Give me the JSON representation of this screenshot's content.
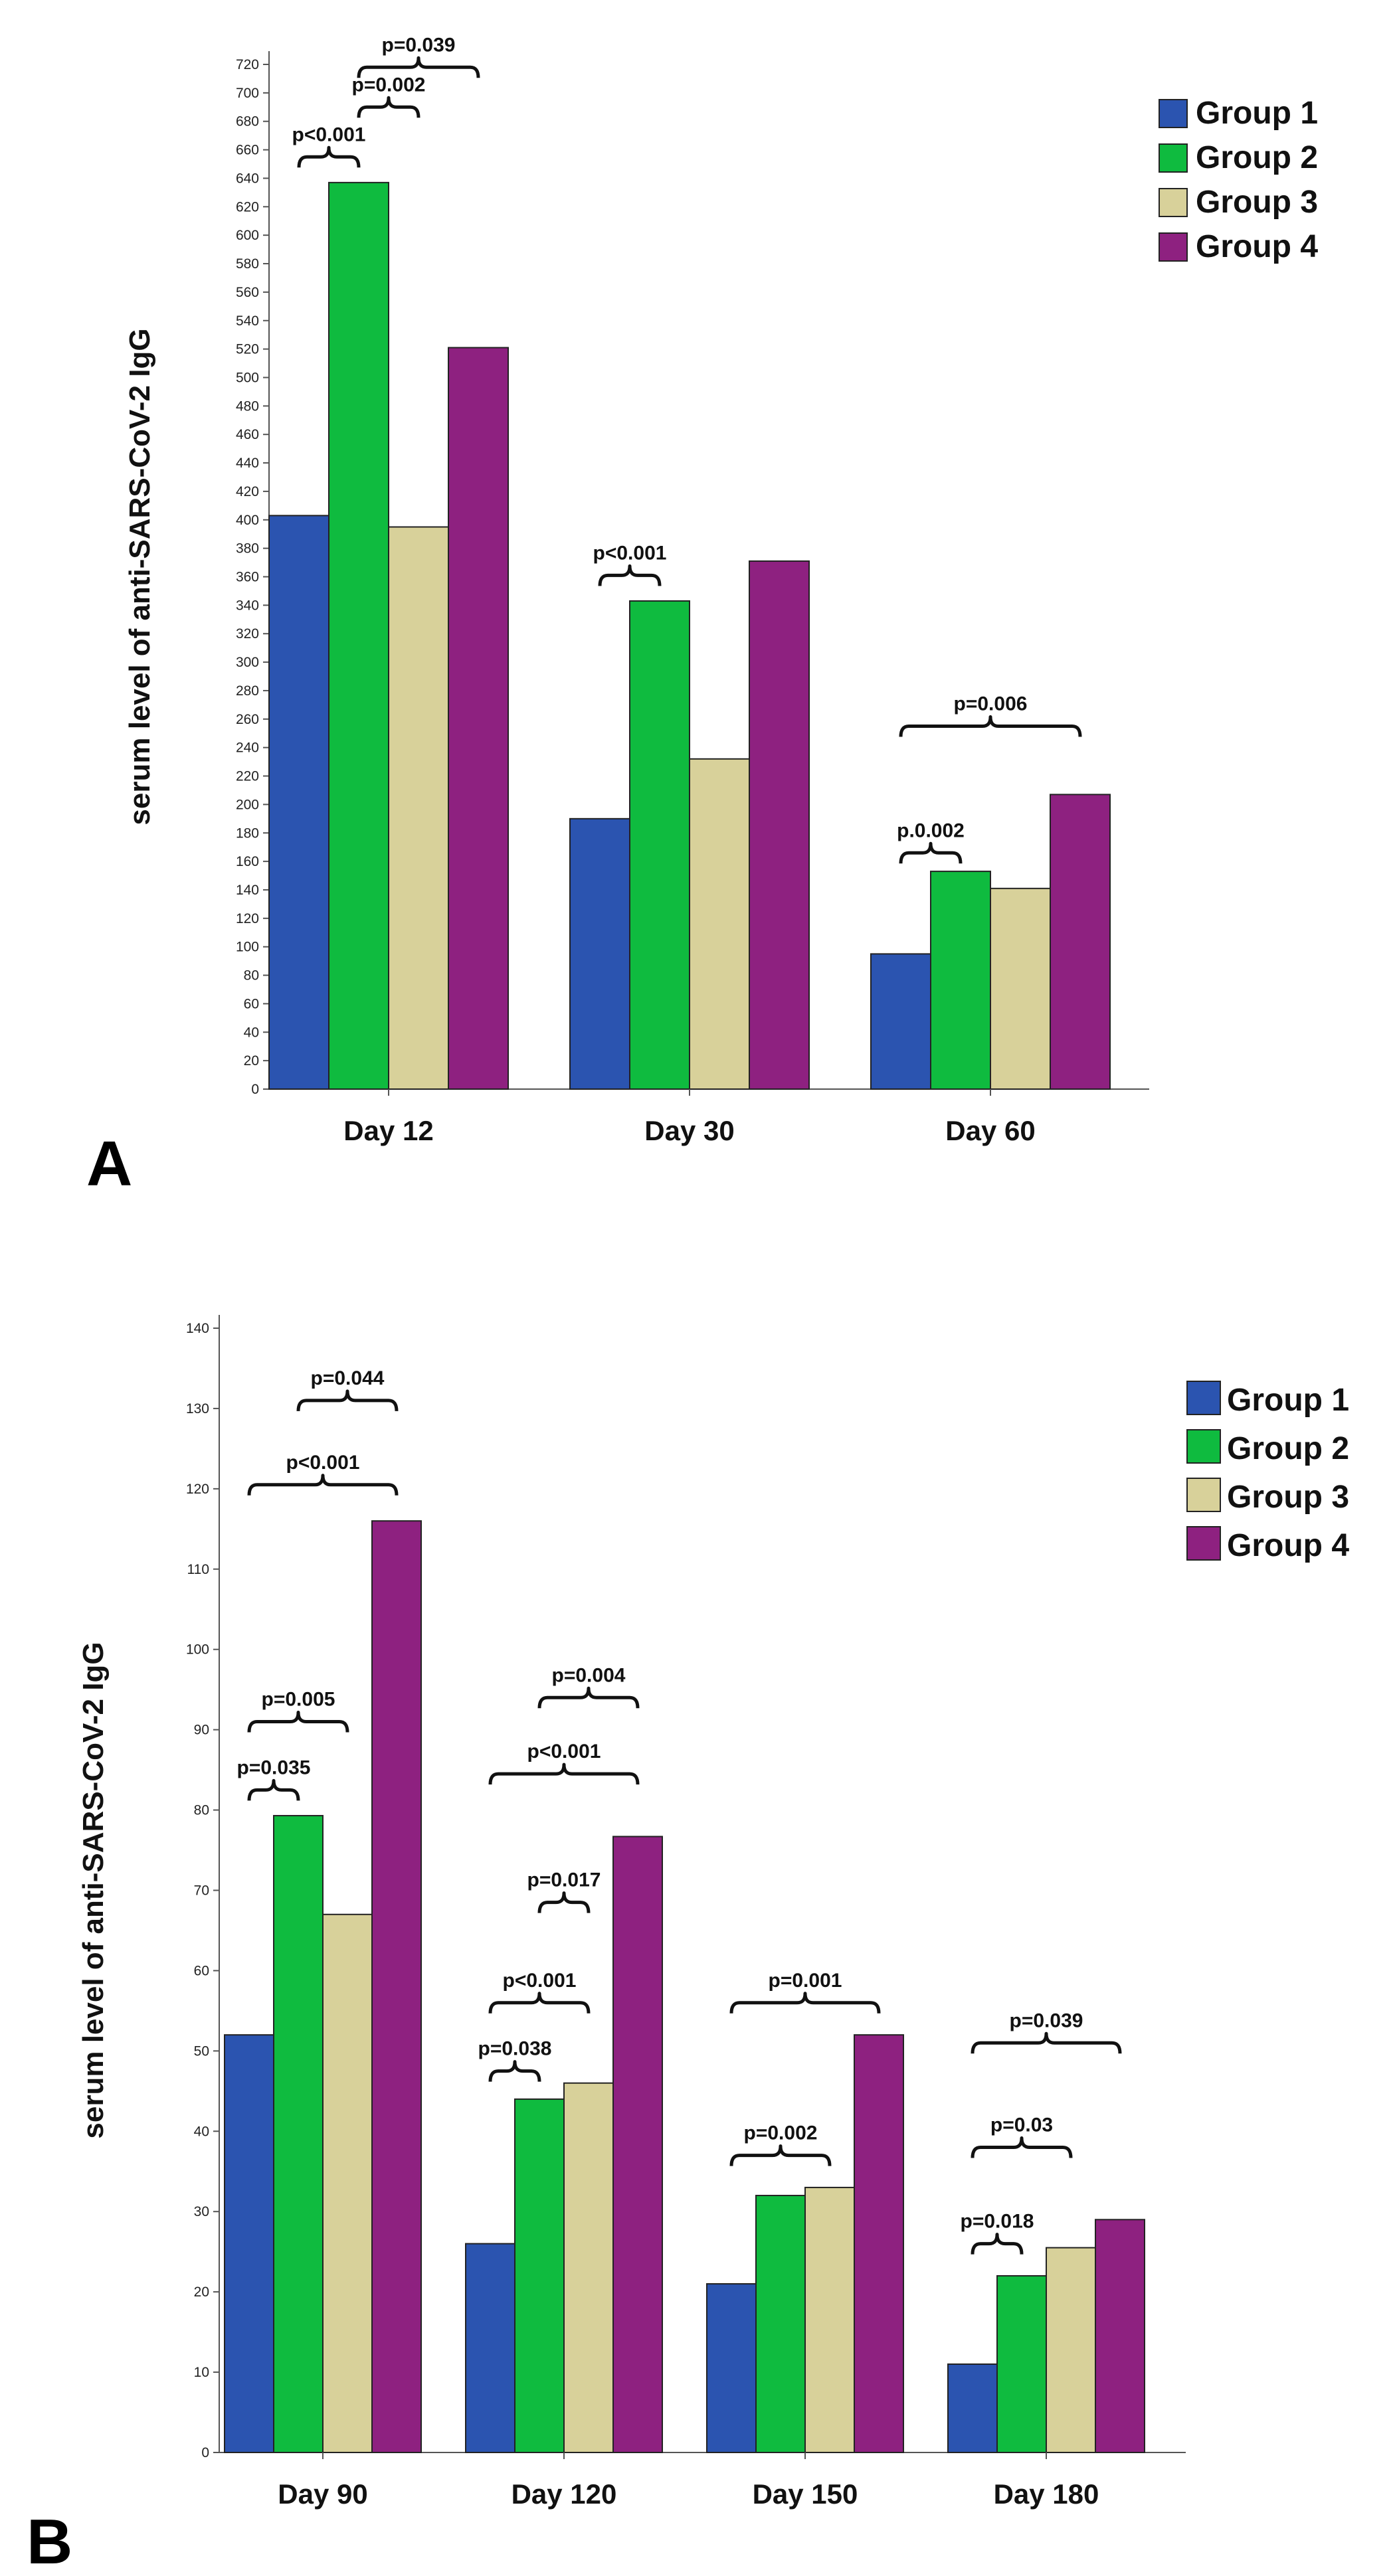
{
  "chart_data": [
    {
      "type": "bar",
      "panel_label": "A",
      "ylabel": "serum level of anti-SARS-CoV-2 IgG",
      "xlabel": "",
      "ylim": [
        0,
        720
      ],
      "ytick_step": 20,
      "categories": [
        "Day 12",
        "Day 30",
        "Day 60"
      ],
      "series": [
        {
          "name": "Group 1",
          "color": "#2b54b0",
          "values": [
            403,
            190,
            95
          ]
        },
        {
          "name": "Group 2",
          "color": "#0fbb3f",
          "values": [
            637,
            343,
            153
          ]
        },
        {
          "name": "Group 3",
          "color": "#d8d19a",
          "values": [
            395,
            232,
            141
          ]
        },
        {
          "name": "Group 4",
          "color": "#8e2180",
          "values": [
            521,
            371,
            207
          ]
        }
      ],
      "legend_position": "top-right",
      "annotations": [
        {
          "text": "p<0.001",
          "category": 0,
          "from": 0,
          "to": 1,
          "value": 655
        },
        {
          "text": "p=0.002",
          "category": 0,
          "from": 1,
          "to": 2,
          "value": 690
        },
        {
          "text": "p=0.039",
          "category": 0,
          "from": 1,
          "to": 3,
          "value": 718
        },
        {
          "text": "p<0.001",
          "category": 1,
          "from": 0,
          "to": 1,
          "value": 361
        },
        {
          "text": "p.0.002",
          "category": 2,
          "from": 0,
          "to": 1,
          "value": 166
        },
        {
          "text": "p=0.006",
          "category": 2,
          "from": 0,
          "to": 3,
          "value": 255
        }
      ]
    },
    {
      "type": "bar",
      "panel_label": "B",
      "ylabel": "serum level of anti-SARS-CoV-2 IgG",
      "xlabel": "",
      "ylim": [
        0,
        140
      ],
      "ytick_step": 10,
      "categories": [
        "Day 90",
        "Day 120",
        "Day 150",
        "Day 180"
      ],
      "series": [
        {
          "name": "Group 1",
          "color": "#2b54b0",
          "values": [
            52,
            26,
            21,
            11
          ]
        },
        {
          "name": "Group 2",
          "color": "#0fbb3f",
          "values": [
            79.3,
            44,
            32,
            22
          ]
        },
        {
          "name": "Group 3",
          "color": "#d8d19a",
          "values": [
            67,
            46,
            33,
            25.5
          ]
        },
        {
          "name": "Group 4",
          "color": "#8e2180",
          "values": [
            116,
            76.7,
            52,
            29
          ]
        }
      ],
      "legend_position": "top-right",
      "annotations": [
        {
          "text": "p=0.035",
          "category": 0,
          "from": 0,
          "to": 1,
          "value": 82.5
        },
        {
          "text": "p=0.005",
          "category": 0,
          "from": 0,
          "to": 2,
          "value": 91
        },
        {
          "text": "p<0.001",
          "category": 0,
          "from": 0,
          "to": 3,
          "value": 120.5
        },
        {
          "text": "p=0.044",
          "category": 0,
          "from": 1,
          "to": 3,
          "value": 131
        },
        {
          "text": "p=0.038",
          "category": 1,
          "from": 0,
          "to": 1,
          "value": 47.5
        },
        {
          "text": "p<0.001",
          "category": 1,
          "from": 0,
          "to": 2,
          "value": 56
        },
        {
          "text": "p=0.017",
          "category": 1,
          "from": 1,
          "to": 2,
          "value": 68.5
        },
        {
          "text": "p<0.001",
          "category": 1,
          "from": 0,
          "to": 3,
          "value": 84.5
        },
        {
          "text": "p=0.004",
          "category": 1,
          "from": 1,
          "to": 3,
          "value": 94
        },
        {
          "text": "p=0.002",
          "category": 2,
          "from": 0,
          "to": 2,
          "value": 37
        },
        {
          "text": "p=0.001",
          "category": 2,
          "from": 0,
          "to": 3,
          "value": 56
        },
        {
          "text": "p=0.018",
          "category": 3,
          "from": 0,
          "to": 1,
          "value": 26
        },
        {
          "text": "p=0.03",
          "category": 3,
          "from": 0,
          "to": 2,
          "value": 38
        },
        {
          "text": "p=0.039",
          "category": 3,
          "from": 0,
          "to": 3,
          "value": 51
        }
      ]
    }
  ]
}
